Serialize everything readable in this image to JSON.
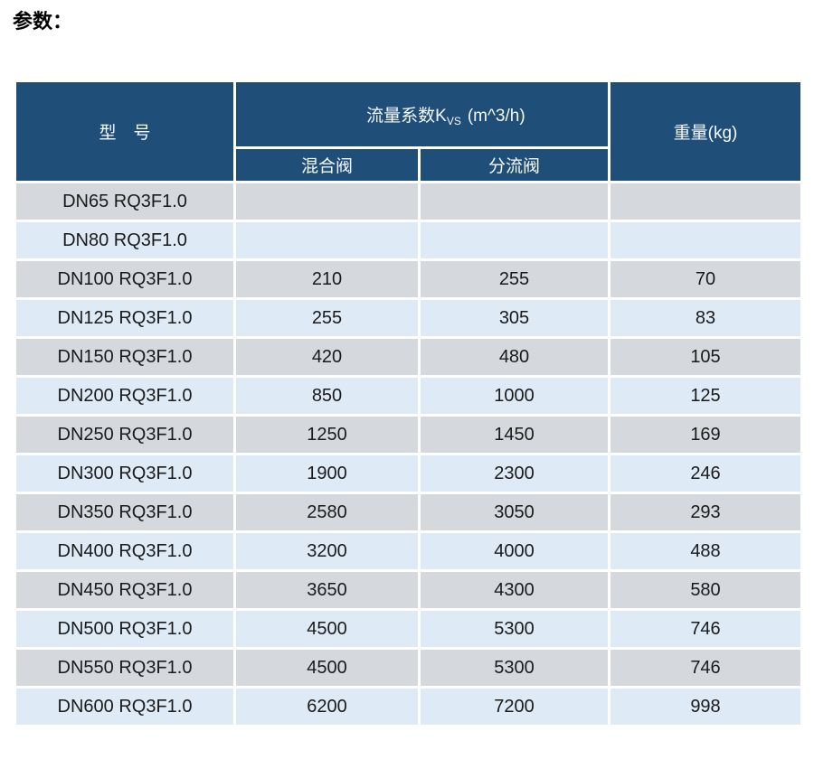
{
  "page_title": "参数：",
  "colors": {
    "header_bg": "#1f4e79",
    "row_gray": "#d5d9de",
    "row_blue": "#deeaf6",
    "gridline": "#ffffff",
    "text": "#1a1a1a"
  },
  "table": {
    "header": {
      "model": "型　号",
      "kvs_prefix": "流量系数K",
      "kvs_sub": "VS",
      "kvs_suffix": "(m^3/h)",
      "mixing": "混合阀",
      "diverting": "分流阀",
      "weight": "重量(kg)"
    },
    "rows": [
      {
        "model": "DN65 RQ3F1.0",
        "mixing": "",
        "diverting": "",
        "weight": ""
      },
      {
        "model": "DN80 RQ3F1.0",
        "mixing": "",
        "diverting": "",
        "weight": ""
      },
      {
        "model": "DN100 RQ3F1.0",
        "mixing": "210",
        "diverting": "255",
        "weight": "70"
      },
      {
        "model": "DN125 RQ3F1.0",
        "mixing": "255",
        "diverting": "305",
        "weight": "83"
      },
      {
        "model": "DN150 RQ3F1.0",
        "mixing": "420",
        "diverting": "480",
        "weight": "105"
      },
      {
        "model": "DN200 RQ3F1.0",
        "mixing": "850",
        "diverting": "1000",
        "weight": "125"
      },
      {
        "model": "DN250 RQ3F1.0",
        "mixing": "1250",
        "diverting": "1450",
        "weight": "169"
      },
      {
        "model": "DN300 RQ3F1.0",
        "mixing": "1900",
        "diverting": "2300",
        "weight": "246"
      },
      {
        "model": "DN350 RQ3F1.0",
        "mixing": "2580",
        "diverting": "3050",
        "weight": "293"
      },
      {
        "model": "DN400 RQ3F1.0",
        "mixing": "3200",
        "diverting": "4000",
        "weight": "488"
      },
      {
        "model": "DN450 RQ3F1.0",
        "mixing": "3650",
        "diverting": "4300",
        "weight": "580"
      },
      {
        "model": "DN500 RQ3F1.0",
        "mixing": "4500",
        "diverting": "5300",
        "weight": "746"
      },
      {
        "model": "DN550 RQ3F1.0",
        "mixing": "4500",
        "diverting": "5300",
        "weight": "746"
      },
      {
        "model": "DN600 RQ3F1.0",
        "mixing": "6200",
        "diverting": "7200",
        "weight": "998"
      }
    ]
  }
}
